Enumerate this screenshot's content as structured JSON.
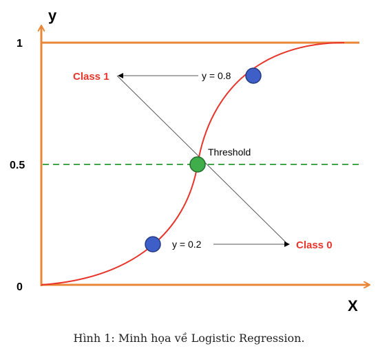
{
  "axes": {
    "y_label": "y",
    "x_label": "X",
    "tick_1": "1",
    "tick_half": "0.5",
    "tick_0": "0"
  },
  "labels": {
    "class1": "Class 1",
    "class0": "Class 0",
    "y_high": "y = 0.8",
    "y_low": "y = 0.2",
    "threshold": "Threshold"
  },
  "caption": "Hình 1: Minh họa về Logistic Regression.",
  "colors": {
    "axis": "#e8873a",
    "curve": "#e8342a",
    "threshold_line": "#3fa648",
    "threshold_point": "#3fae4a",
    "sample_point": "#3f5fc8",
    "class_text": "#e8342a"
  }
}
